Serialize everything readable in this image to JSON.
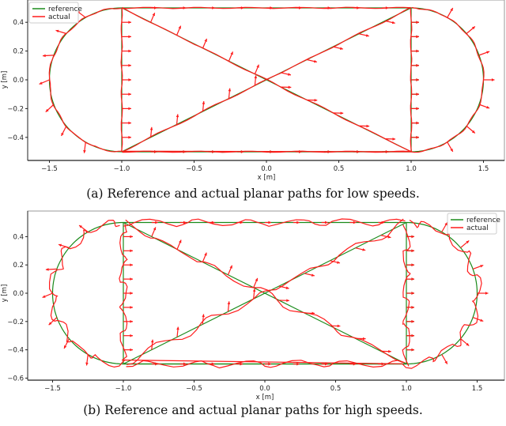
{
  "captions": {
    "a": "(a) Reference and actual planar paths for low speeds.",
    "b": "(b) Reference and actual planar paths for high speeds."
  },
  "colors": {
    "reference": "#1a8a1a",
    "actual": "#ff1a1a",
    "axis": "#222222"
  },
  "chart_data": [
    {
      "id": "a",
      "type": "line",
      "title": "",
      "xlabel": "x [m]",
      "ylabel": "y [m]",
      "xlim": [
        -1.65,
        1.65
      ],
      "ylim": [
        -0.55,
        0.55
      ],
      "xticks": [
        -1.5,
        -1.0,
        -0.5,
        0.0,
        0.5,
        1.0,
        1.5
      ],
      "xtick_labels": [
        "−1.5",
        "−1.0",
        "−0.5",
        "0.0",
        "0.5",
        "1.0",
        "1.5"
      ],
      "yticks": [
        0.4,
        0.2,
        0.0,
        -0.2,
        -0.4
      ],
      "ytick_labels": [
        "0.4",
        "0.2",
        "0.0",
        "−0.2",
        "−0.4"
      ],
      "grid": false,
      "legend": {
        "position": "upper left",
        "entries": [
          "reference",
          "actual"
        ]
      },
      "series": [
        {
          "name": "reference",
          "description": "stadium loop (semicircles r=0.5 centered at x=±1) plus rectangle x∈[−1,1], y∈[−0.5,0.5] with diagonal X crossing at origin",
          "path": "stadium+rectangle+X"
        },
        {
          "name": "actual",
          "description": "closely tracks reference at low speed; heading arrows drawn along path",
          "path": "stadium+rectangle+X",
          "deviation": 0.005
        }
      ]
    },
    {
      "id": "b",
      "type": "line",
      "title": "",
      "xlabel": "x [m]",
      "ylabel": "y [m]",
      "xlim": [
        -1.65,
        1.7
      ],
      "ylim": [
        -0.61,
        0.53
      ],
      "xticks": [
        -1.5,
        -1.0,
        -0.5,
        0.0,
        0.5,
        1.0,
        1.5
      ],
      "xtick_labels": [
        "−1.5",
        "−1.0",
        "−0.5",
        "0.0",
        "0.5",
        "1.0",
        "1.5"
      ],
      "yticks": [
        0.4,
        0.2,
        0.0,
        -0.2,
        -0.4,
        -0.6
      ],
      "ytick_labels": [
        "0.4",
        "0.2",
        "0.0",
        "−0.2",
        "−0.4",
        "−0.6"
      ],
      "grid": false,
      "legend": {
        "position": "upper right",
        "entries": [
          "reference",
          "actual"
        ]
      },
      "series": [
        {
          "name": "reference",
          "description": "stadium loop plus rectangle with diagonal X crossing at origin",
          "path": "stadium+rectangle+X"
        },
        {
          "name": "actual",
          "description": "noticeable wobble and overshoot at high speed; heading arrows along path",
          "path": "stadium+rectangle+X",
          "deviation": 0.03
        }
      ]
    }
  ]
}
